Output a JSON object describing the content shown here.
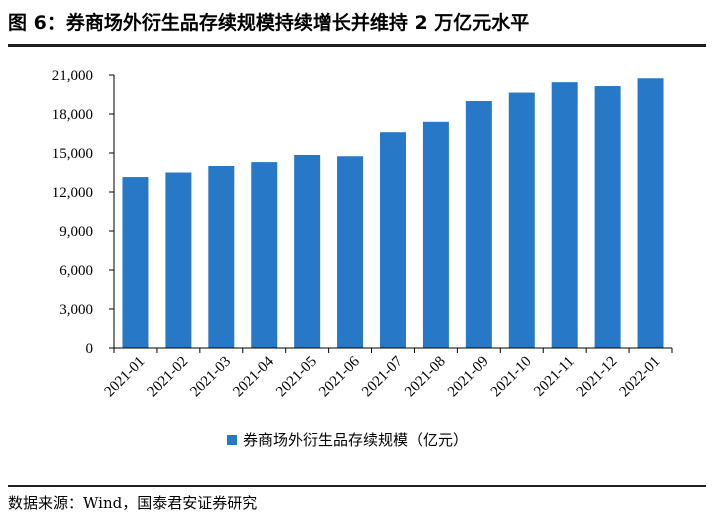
{
  "header": {
    "figure_title": "图 6：券商场外衍生品存续规模持续增长并维持 2 万亿元水平"
  },
  "footer": {
    "source": "数据来源：Wind，国泰君安证券研究"
  },
  "chart_data": {
    "type": "bar",
    "categories": [
      "2021-01",
      "2021-02",
      "2021-03",
      "2021-04",
      "2021-05",
      "2021-06",
      "2021-07",
      "2021-08",
      "2021-09",
      "2021-10",
      "2021-11",
      "2021-12",
      "2022-01"
    ],
    "series": [
      {
        "name": "券商场外衍生品存续规模（亿元）",
        "values": [
          13150,
          13500,
          14000,
          14300,
          14850,
          14750,
          16600,
          17400,
          19000,
          19650,
          20450,
          20150,
          20750
        ]
      }
    ],
    "yticks": [
      "0",
      "3,000",
      "6,000",
      "9,000",
      "12,000",
      "15,000",
      "18,000",
      "21,000"
    ],
    "ylim": [
      0,
      21000
    ],
    "grid": false,
    "legend": "bottom",
    "bar_color": "#2878c8"
  }
}
